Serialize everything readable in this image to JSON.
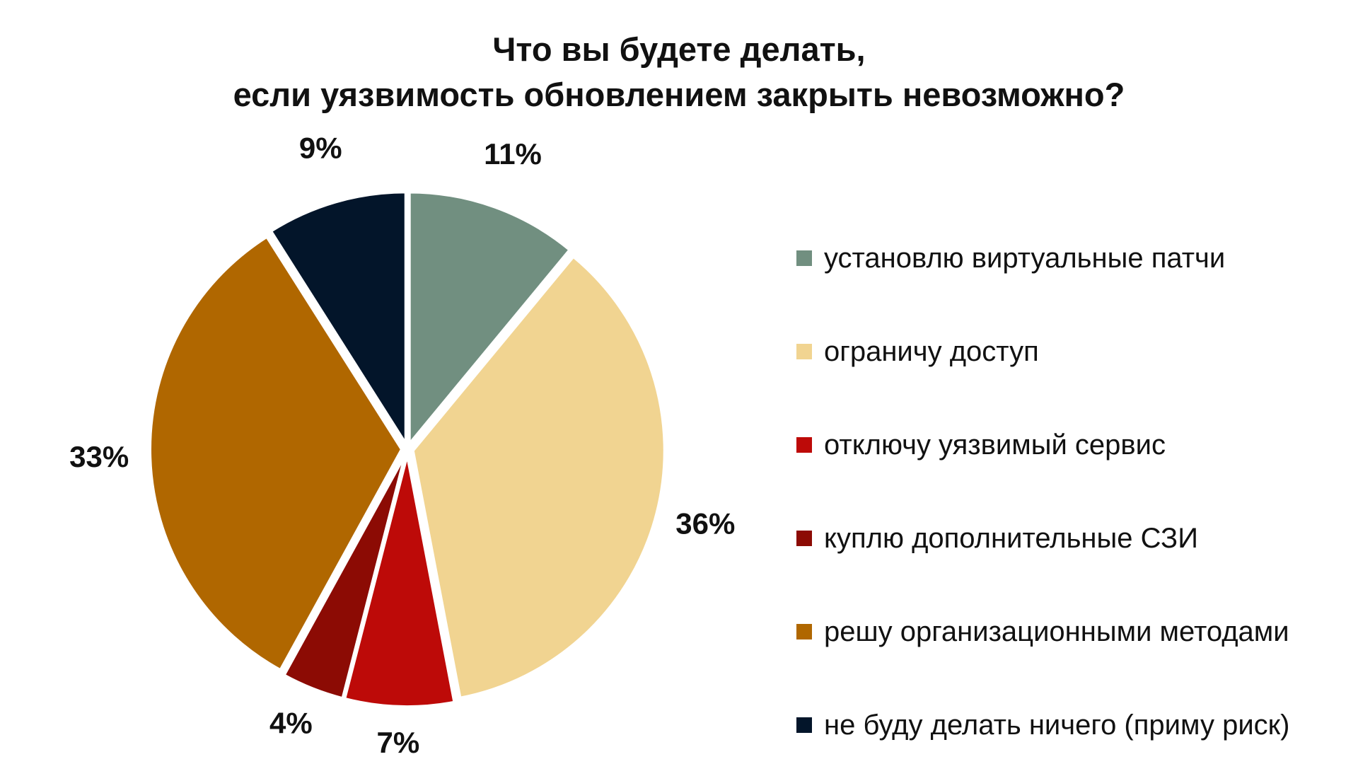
{
  "chart_data": {
    "type": "pie",
    "title_lines": [
      "Что вы будете делать,",
      "если уязвимость обновлением закрыть невозможно?"
    ],
    "slices": [
      {
        "label": "установлю виртуальные патчи",
        "value": 11,
        "value_label": "11%",
        "color": "#718f80"
      },
      {
        "label": "ограничу доступ",
        "value": 36,
        "value_label": "36%",
        "color": "#f1d491"
      },
      {
        "label": "отключу уязвимый сервис",
        "value": 7,
        "value_label": "7%",
        "color": "#bd0a08"
      },
      {
        "label": "куплю дополнительные СЗИ",
        "value": 4,
        "value_label": "4%",
        "color": "#8c0b04"
      },
      {
        "label": "решу организационными методами",
        "value": 33,
        "value_label": "33%",
        "color": "#b06700"
      },
      {
        "label": "не буду делать ничего (приму риск)",
        "value": 9,
        "value_label": "9%",
        "color": "#03152a"
      }
    ],
    "start": "12 o'clock",
    "direction": "clockwise",
    "legend_position": "right"
  }
}
